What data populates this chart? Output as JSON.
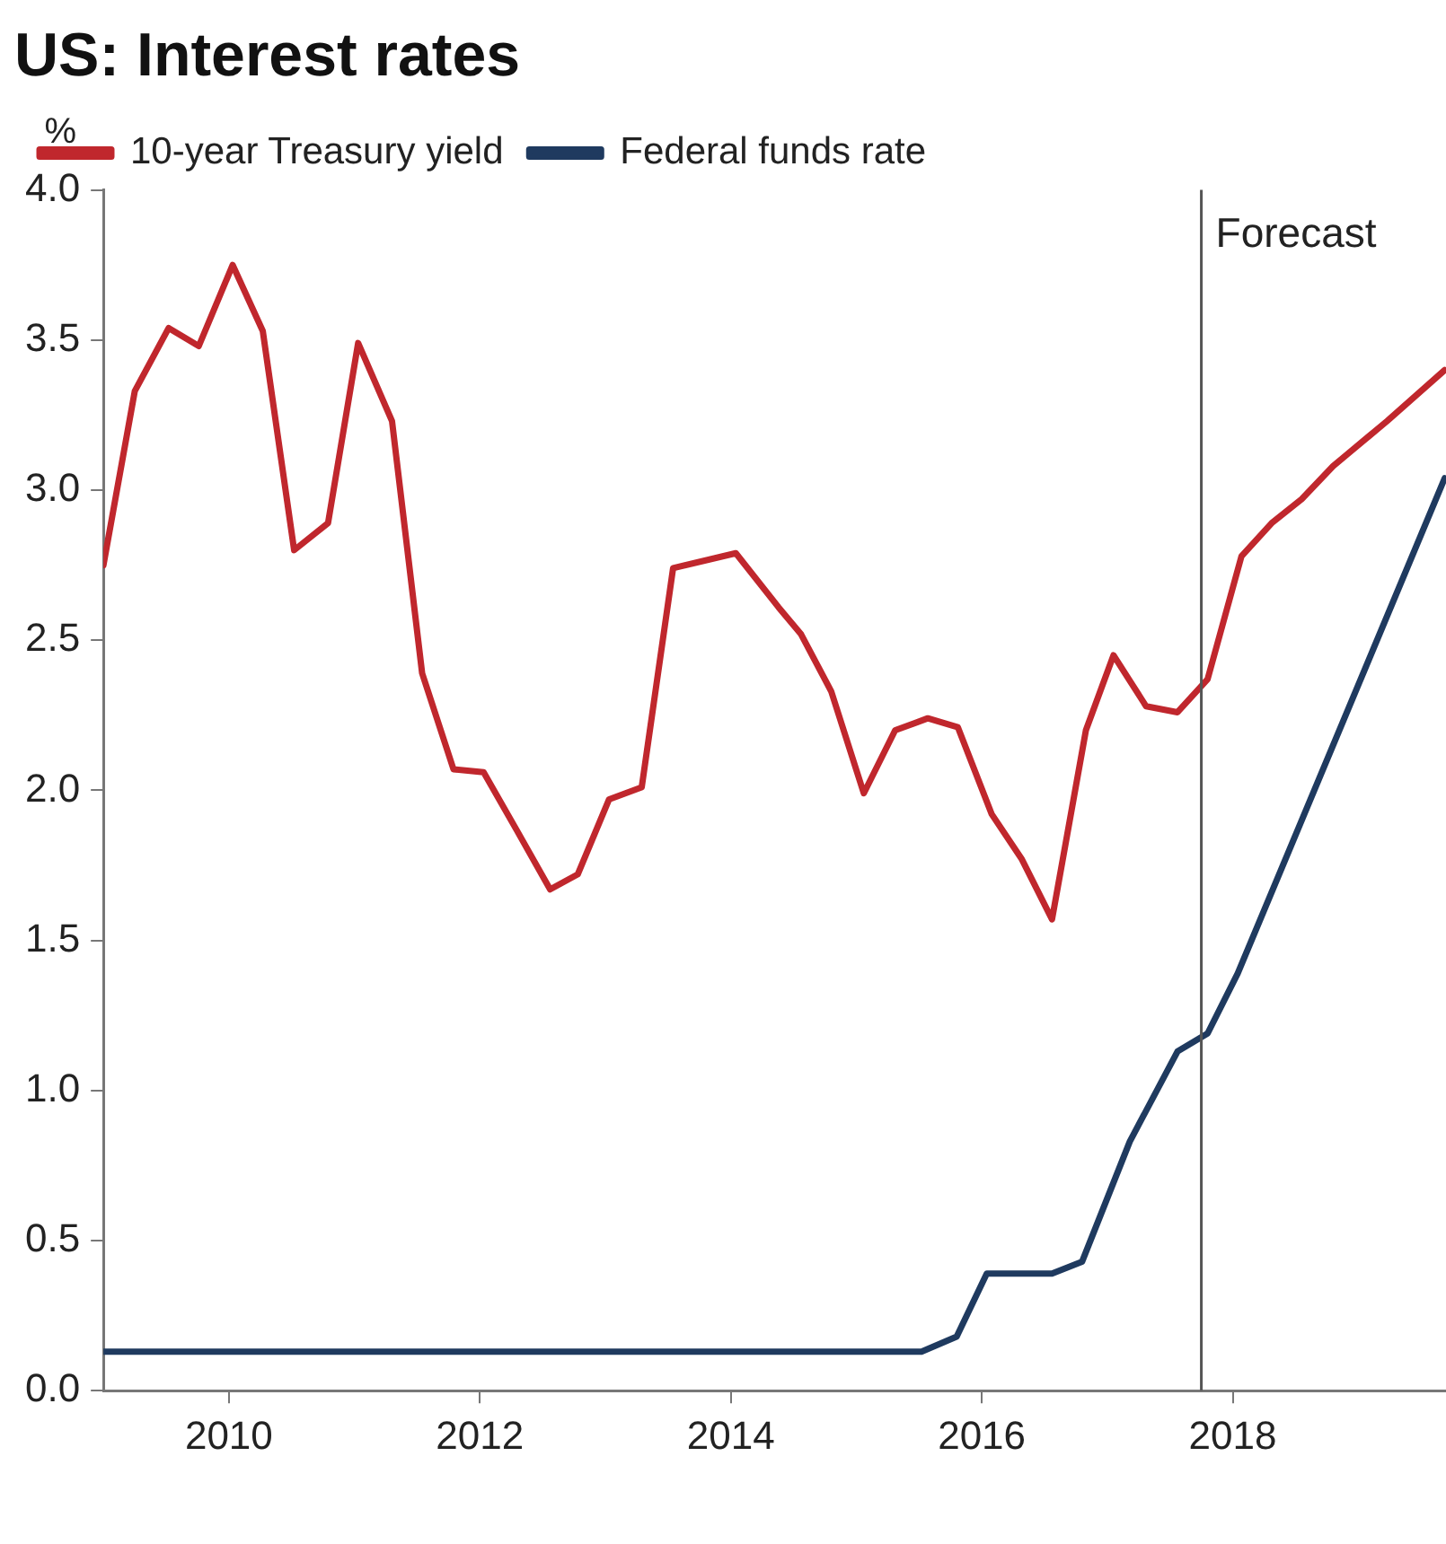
{
  "chart_data": {
    "type": "line",
    "title": "US: Interest rates",
    "ylabel": "%",
    "xlim": [
      2009,
      2019.7
    ],
    "xticks": [
      2010,
      2012,
      2014,
      2016,
      2018
    ],
    "ylim": [
      0,
      4
    ],
    "yticks": [
      {
        "value": 0,
        "label": "0.0"
      },
      {
        "value": 0.5,
        "label": "0.5"
      },
      {
        "value": 1,
        "label": "1.0"
      },
      {
        "value": 1.5,
        "label": "1.5"
      },
      {
        "value": 2,
        "label": "2.0"
      },
      {
        "value": 2.5,
        "label": "2.5"
      },
      {
        "value": 3,
        "label": "3.0"
      },
      {
        "value": 3.5,
        "label": "3.5"
      },
      {
        "value": 4,
        "label": "4.0"
      }
    ],
    "series": [
      {
        "name": "10-year Treasury yield",
        "color": "#c0272d",
        "x": [
          2009.0,
          2009.25,
          2009.52,
          2009.76,
          2010.03,
          2010.27,
          2010.52,
          2010.79,
          2011.03,
          2011.3,
          2011.54,
          2011.79,
          2012.03,
          2012.29,
          2012.56,
          2012.78,
          2013.03,
          2013.29,
          2013.54,
          2014.04,
          2014.38,
          2014.56,
          2014.8,
          2015.06,
          2015.31,
          2015.57,
          2015.81,
          2016.08,
          2016.32,
          2016.56,
          2016.83,
          2017.05,
          2017.31,
          2017.56,
          2017.8,
          2018.07,
          2018.31,
          2018.55,
          2018.8,
          2019.23,
          2019.69
        ],
        "values": [
          2.75,
          3.33,
          3.54,
          3.48,
          3.75,
          3.53,
          2.8,
          2.89,
          3.49,
          3.23,
          2.39,
          2.07,
          2.06,
          1.87,
          1.67,
          1.72,
          1.97,
          2.01,
          2.74,
          2.79,
          2.61,
          2.52,
          2.33,
          1.99,
          2.2,
          2.24,
          2.21,
          1.92,
          1.77,
          1.57,
          2.2,
          2.45,
          2.28,
          2.26,
          2.37,
          2.78,
          2.89,
          2.97,
          3.08,
          3.23,
          3.4
        ]
      },
      {
        "name": "Federal funds rate",
        "color": "#1f3a5f",
        "x": [
          2009.0,
          2015.52,
          2015.8,
          2016.04,
          2016.56,
          2016.8,
          2017.18,
          2017.56,
          2017.8,
          2018.04,
          2019.69
        ],
        "values": [
          0.13,
          0.13,
          0.18,
          0.39,
          0.39,
          0.43,
          0.83,
          1.13,
          1.19,
          1.39,
          3.04
        ]
      }
    ],
    "ref_lines": [
      {
        "axis": "x",
        "value": 2017.75,
        "label": "Forecast",
        "color": "#555555"
      }
    ],
    "legend": "top left",
    "grid": false,
    "marker": "none",
    "line_style": "solid"
  }
}
